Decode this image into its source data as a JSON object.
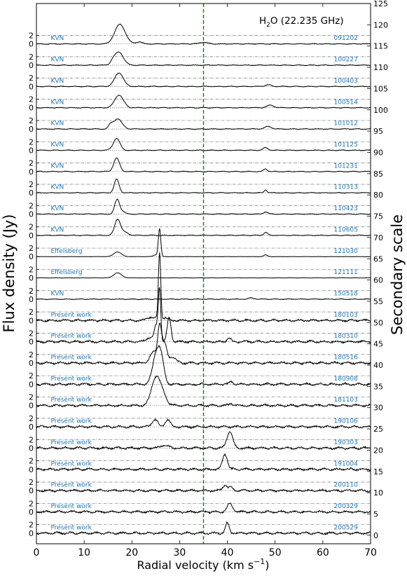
{
  "chart_data": {
    "type": "line",
    "title": "H2O (22.235 GHz)",
    "title_main": "H",
    "title_sub": "2",
    "title_rest": "O (22.235 GHz)",
    "xlabel": "Radial velocity (km s",
    "xlabel_sup": "−1",
    "xlabel_end": ")",
    "ylabel": "Flux density (Jy)",
    "ylabel_right": "Secondary scale",
    "xlim": [
      0,
      70
    ],
    "x_ticks": [
      "0",
      "10",
      "20",
      "30",
      "40",
      "50",
      "60",
      "70"
    ],
    "y_ticks_left": [
      "0",
      "2"
    ],
    "y_right_lim": [
      -2,
      125
    ],
    "y_right_ticks": [
      "0",
      "5",
      "10",
      "15",
      "20",
      "25",
      "30",
      "35",
      "40",
      "45",
      "50",
      "55",
      "60",
      "65",
      "70",
      "75",
      "80",
      "85",
      "90",
      "95",
      "100",
      "105",
      "110",
      "115",
      "120",
      "125"
    ],
    "reference_velocity": 35,
    "colors": {
      "line": "#000000",
      "label": "#1f77b4",
      "reference": "#008000",
      "baseline": "#777777"
    },
    "series": [
      {
        "name": "091202",
        "telescope": "KVN",
        "offset": 115.5,
        "peaks": [
          [
            17.5,
            4.6,
            1.1
          ],
          [
            21.5,
            0.5,
            0.6
          ],
          [
            35,
            0.4,
            0.8
          ]
        ]
      },
      {
        "name": "100227",
        "telescope": "KVN",
        "offset": 110.5,
        "peaks": [
          [
            17.3,
            3.1,
            0.9
          ],
          [
            16,
            0.7,
            0.5
          ]
        ]
      },
      {
        "name": "100403",
        "telescope": "KVN",
        "offset": 105.5,
        "peaks": [
          [
            17.3,
            3.2,
            0.9
          ],
          [
            48.5,
            0.4,
            0.6
          ]
        ]
      },
      {
        "name": "100514",
        "telescope": "KVN",
        "offset": 100.5,
        "peaks": [
          [
            17.3,
            3.0,
            0.9
          ],
          [
            49,
            0.6,
            0.7
          ]
        ]
      },
      {
        "name": "101012",
        "telescope": "KVN",
        "offset": 95.5,
        "peaks": [
          [
            17.0,
            2.4,
            0.9
          ],
          [
            15.5,
            0.8,
            0.4
          ],
          [
            48.5,
            0.6,
            0.7
          ]
        ]
      },
      {
        "name": "101125",
        "telescope": "KVN",
        "offset": 90.5,
        "peaks": [
          [
            16.8,
            2.8,
            0.7
          ],
          [
            48.0,
            0.6,
            0.5
          ]
        ]
      },
      {
        "name": "101231",
        "telescope": "KVN",
        "offset": 85.5,
        "peaks": [
          [
            16.8,
            3.2,
            0.6
          ],
          [
            48.0,
            0.6,
            0.4
          ]
        ]
      },
      {
        "name": "110313",
        "telescope": "KVN",
        "offset": 80.5,
        "peaks": [
          [
            16.8,
            3.2,
            0.5
          ],
          [
            48.0,
            0.7,
            0.3
          ]
        ]
      },
      {
        "name": "110423",
        "telescope": "KVN",
        "offset": 75.5,
        "peaks": [
          [
            16.9,
            3.4,
            0.5
          ],
          [
            18.0,
            0.6,
            0.6
          ],
          [
            48.0,
            0.5,
            0.5
          ]
        ]
      },
      {
        "name": "110605",
        "telescope": "KVN",
        "offset": 70.5,
        "peaks": [
          [
            17.0,
            3.8,
            0.6
          ],
          [
            18.5,
            0.7,
            0.7
          ],
          [
            48.0,
            0.7,
            0.4
          ]
        ]
      },
      {
        "name": "121030",
        "telescope": "Effelsberg",
        "offset": 65.5,
        "peaks": [
          [
            17.0,
            1.1,
            0.8
          ],
          [
            25.8,
            6.5,
            0.25
          ],
          [
            25.0,
            0.4,
            0.5
          ],
          [
            48.0,
            0.4,
            0.4
          ]
        ]
      },
      {
        "name": "121111",
        "telescope": "Effelsberg",
        "offset": 60.5,
        "peaks": [
          [
            17.0,
            1.2,
            0.8
          ]
        ]
      },
      {
        "name": "150518",
        "telescope": "KVN",
        "offset": 55.5,
        "peaks": [
          [
            45.0,
            0.3,
            0.6
          ]
        ]
      },
      {
        "name": "180103",
        "telescope": "Present work",
        "offset": 50.5,
        "peaks": [
          [
            24.0,
            0.8,
            0.8
          ],
          [
            25.8,
            16.0,
            0.25
          ],
          [
            27.0,
            0.7,
            0.4
          ]
        ]
      },
      {
        "name": "180310",
        "telescope": "Present work",
        "offset": 45.5,
        "peaks": [
          [
            23.5,
            0.9,
            0.6
          ],
          [
            25.2,
            4.0,
            0.5
          ],
          [
            25.8,
            11.0,
            0.25
          ],
          [
            27.8,
            5.6,
            0.4
          ],
          [
            40.3,
            0.9,
            0.4
          ]
        ]
      },
      {
        "name": "180516",
        "telescope": "Present work",
        "offset": 40.5,
        "peaks": [
          [
            24.5,
            2.5,
            0.7
          ],
          [
            25.8,
            8.5,
            0.4
          ],
          [
            26.8,
            4.5,
            0.5
          ],
          [
            28.5,
            1.4,
            0.7
          ]
        ]
      },
      {
        "name": "180908",
        "telescope": "Present work",
        "offset": 35.5,
        "peaks": [
          [
            25.2,
            7.5,
            0.8
          ],
          [
            26.2,
            4.0,
            0.6
          ],
          [
            40.8,
            0.6,
            0.4
          ]
        ]
      },
      {
        "name": "181103",
        "telescope": "Present work",
        "offset": 30.5,
        "peaks": [
          [
            25.0,
            6.5,
            0.9
          ],
          [
            26.5,
            2.2,
            0.8
          ],
          [
            40.8,
            0.5,
            0.4
          ]
        ]
      },
      {
        "name": "190106",
        "telescope": "Present work",
        "offset": 25.5,
        "peaks": [
          [
            24.8,
            1.7,
            0.6
          ],
          [
            27.5,
            1.7,
            0.5
          ]
        ]
      },
      {
        "name": "190303",
        "telescope": "Present work",
        "offset": 20.5,
        "peaks": [
          [
            26.8,
            0.8,
            0.7
          ],
          [
            40.5,
            4.0,
            0.6
          ]
        ]
      },
      {
        "name": "191004",
        "telescope": "Present work",
        "offset": 15.5,
        "peaks": [
          [
            39.5,
            3.6,
            0.5
          ]
        ]
      },
      {
        "name": "200110",
        "telescope": "Present work",
        "offset": 10.5,
        "peaks": [
          [
            39.5,
            1.3,
            0.5
          ],
          [
            40.8,
            0.7,
            0.4
          ]
        ]
      },
      {
        "name": "200329",
        "telescope": "Present work",
        "offset": 5.5,
        "peaks": [
          [
            40.5,
            1.8,
            0.6
          ]
        ]
      },
      {
        "name": "200529",
        "telescope": "Present work",
        "offset": 0.5,
        "peaks": [
          [
            40.0,
            2.4,
            0.4
          ]
        ]
      }
    ]
  }
}
